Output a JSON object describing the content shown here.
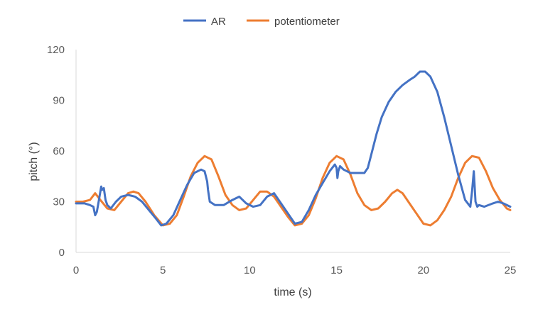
{
  "chart_data": {
    "type": "line",
    "xlabel": "time (s)",
    "ylabel": "pitch (°)",
    "xlim": [
      0,
      25
    ],
    "ylim": [
      0,
      120
    ],
    "xticks": [
      0,
      5,
      10,
      15,
      20,
      25
    ],
    "yticks": [
      0,
      30,
      60,
      90,
      120
    ],
    "grid": false,
    "legend_position": "top",
    "series": [
      {
        "name": "AR",
        "color": "#4472C4",
        "x": [
          0,
          0.5,
          0.8,
          1.0,
          1.1,
          1.2,
          1.3,
          1.45,
          1.5,
          1.6,
          1.7,
          1.8,
          2.0,
          2.3,
          2.6,
          3.0,
          3.4,
          3.8,
          4.2,
          4.6,
          4.9,
          5.2,
          5.6,
          6.0,
          6.4,
          6.8,
          7.2,
          7.4,
          7.55,
          7.6,
          7.7,
          8.0,
          8.5,
          9.0,
          9.4,
          9.8,
          10.2,
          10.6,
          11.0,
          11.4,
          11.8,
          12.2,
          12.6,
          13.0,
          13.4,
          13.8,
          14.2,
          14.6,
          14.9,
          15.0,
          15.05,
          15.1,
          15.2,
          15.4,
          15.8,
          16.2,
          16.6,
          16.8,
          17.0,
          17.3,
          17.6,
          18.0,
          18.4,
          18.8,
          19.2,
          19.5,
          19.8,
          20.1,
          20.4,
          20.8,
          21.2,
          21.6,
          22.0,
          22.4,
          22.7,
          22.8,
          22.9,
          23.0,
          23.1,
          23.2,
          23.5,
          24.0,
          24.3,
          24.6,
          25.0
        ],
        "y": [
          29,
          29,
          28,
          27,
          22,
          24,
          30,
          39,
          37,
          38,
          31,
          28,
          26,
          30,
          33,
          34,
          33,
          30,
          25,
          20,
          16,
          17,
          22,
          31,
          40,
          47,
          49,
          48,
          42,
          37,
          30,
          28,
          28,
          31,
          33,
          29,
          27,
          28,
          33,
          35,
          29,
          23,
          17,
          18,
          25,
          34,
          41,
          48,
          52,
          50,
          44,
          48,
          51,
          49,
          47,
          47,
          47,
          50,
          58,
          70,
          80,
          89,
          95,
          99,
          102,
          104,
          107,
          107,
          104,
          95,
          80,
          63,
          46,
          31,
          27,
          36,
          48,
          30,
          27,
          28,
          27,
          29,
          30,
          29,
          27
        ]
      },
      {
        "name": "potentiometer",
        "color": "#ED7D31",
        "x": [
          0,
          0.4,
          0.8,
          1.1,
          1.4,
          1.8,
          2.2,
          2.6,
          3.0,
          3.3,
          3.6,
          4.0,
          4.5,
          5.0,
          5.4,
          5.8,
          6.2,
          6.6,
          7.0,
          7.4,
          7.8,
          8.2,
          8.6,
          9.0,
          9.4,
          9.8,
          10.2,
          10.6,
          11.0,
          11.4,
          11.8,
          12.2,
          12.6,
          13.0,
          13.4,
          13.8,
          14.2,
          14.6,
          15.0,
          15.4,
          15.8,
          16.2,
          16.6,
          17.0,
          17.4,
          17.8,
          18.2,
          18.5,
          18.8,
          19.2,
          19.6,
          20.0,
          20.4,
          20.8,
          21.2,
          21.6,
          22.0,
          22.4,
          22.8,
          23.2,
          23.6,
          24.0,
          24.4,
          24.8,
          25.0
        ],
        "y": [
          30,
          30,
          31,
          35,
          31,
          26,
          25,
          30,
          35,
          36,
          35,
          30,
          22,
          16,
          17,
          22,
          33,
          45,
          53,
          57,
          55,
          45,
          34,
          28,
          25,
          26,
          31,
          36,
          36,
          33,
          27,
          21,
          16,
          17,
          22,
          32,
          44,
          53,
          57,
          55,
          46,
          35,
          28,
          25,
          26,
          30,
          35,
          37,
          35,
          29,
          23,
          17,
          16,
          19,
          25,
          33,
          44,
          53,
          57,
          56,
          48,
          38,
          31,
          26,
          25
        ]
      }
    ]
  }
}
